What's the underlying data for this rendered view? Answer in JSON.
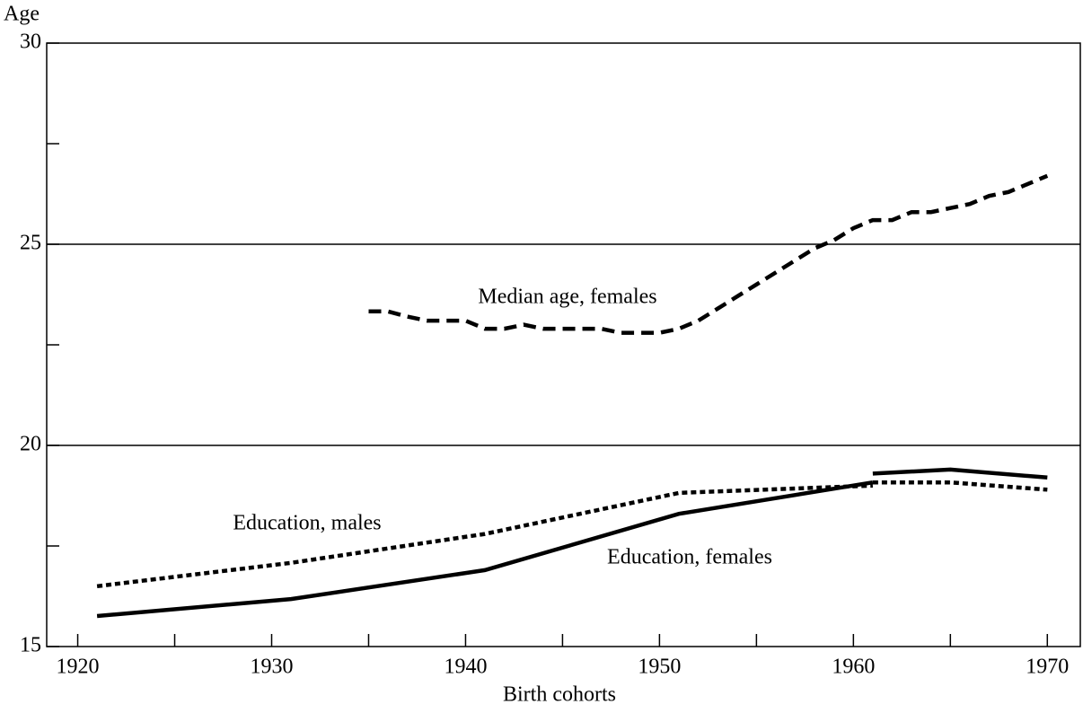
{
  "chart_data": {
    "type": "line",
    "y_label": "Age",
    "x_label": "Birth cohorts",
    "xlim": [
      1918.4,
      1971.7
    ],
    "ylim": [
      15,
      30
    ],
    "xticks": [
      1920,
      1930,
      1940,
      1950,
      1960,
      1970
    ],
    "xminor": [
      1925,
      1935,
      1945,
      1955,
      1965
    ],
    "yticks": [
      15,
      20,
      25,
      30
    ],
    "yminor": [
      17.5,
      22.5,
      27.5
    ],
    "grid_lines": [
      20,
      25
    ],
    "series": [
      {
        "name": "Median age, females",
        "color": "#000000",
        "style": "dashed",
        "x": [
          1935,
          1936,
          1937,
          1938,
          1939,
          1940,
          1941,
          1942,
          1943,
          1944,
          1945,
          1946,
          1947,
          1948,
          1949,
          1950,
          1951,
          1952,
          1953,
          1954,
          1955,
          1956,
          1957,
          1958,
          1959,
          1960,
          1961,
          1962,
          1963,
          1964,
          1965,
          1966,
          1967,
          1968,
          1969,
          1970
        ],
        "values": [
          23.33,
          23.33,
          23.2,
          23.1,
          23.1,
          23.1,
          22.9,
          22.9,
          23.0,
          22.9,
          22.9,
          22.9,
          22.9,
          22.8,
          22.8,
          22.8,
          22.9,
          23.1,
          23.4,
          23.7,
          24.0,
          24.3,
          24.6,
          24.9,
          25.1,
          25.4,
          25.6,
          25.6,
          25.8,
          25.8,
          25.9,
          26.0,
          26.2,
          26.3,
          26.5,
          26.7
        ]
      },
      {
        "name": "Education, males",
        "color": "#000000",
        "style": "dotted",
        "x": [
          1921,
          1931,
          1941,
          1951,
          1961,
          null,
          1961,
          1965,
          1970
        ],
        "values": [
          16.5,
          17.08,
          17.8,
          18.82,
          19.0,
          null,
          19.08,
          19.08,
          18.9
        ]
      },
      {
        "name": "Education, females",
        "color": "#000000",
        "style": "solid",
        "x": [
          1921,
          1931,
          1941,
          1951,
          1961,
          null,
          1961,
          1965,
          1970
        ],
        "values": [
          15.76,
          16.18,
          16.9,
          18.3,
          19.08,
          null,
          19.3,
          19.4,
          19.2
        ]
      }
    ]
  }
}
